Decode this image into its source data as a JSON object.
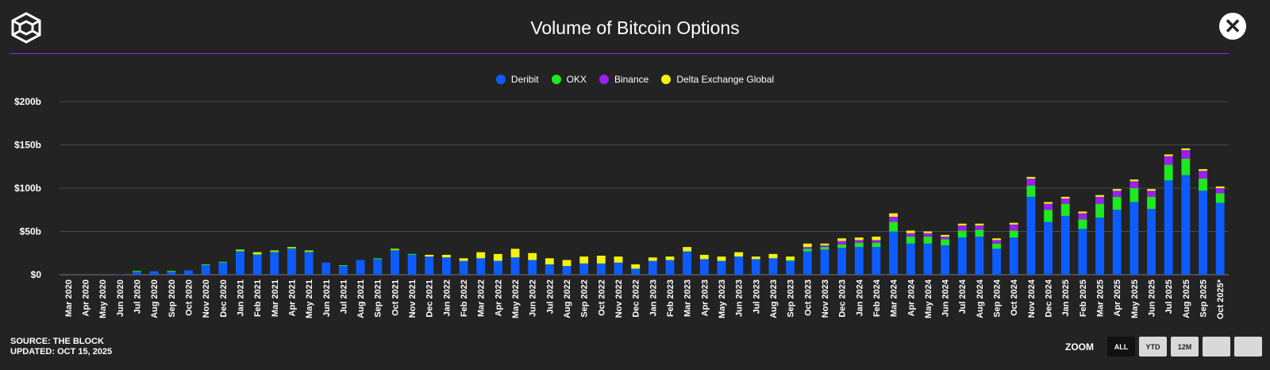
{
  "header": {
    "title": "Volume of Bitcoin Options",
    "close_label": "✕"
  },
  "footer": {
    "source": "SOURCE: THE BLOCK",
    "updated": "UPDATED: OCT 15, 2025"
  },
  "zoom": {
    "label": "ZOOM",
    "buttons": [
      "ALL",
      "YTD",
      "12M",
      "",
      ""
    ],
    "active": "ALL"
  },
  "colors": {
    "background": "#232323",
    "accent_rule": "#8a2be2"
  },
  "chart_data": {
    "type": "bar",
    "stacked": true,
    "title": "Volume of Bitcoin Options",
    "xlabel": "",
    "ylabel": "",
    "ylim": [
      0,
      200
    ],
    "y_ticks": [
      0,
      50,
      100,
      150,
      200
    ],
    "y_tick_labels": [
      "$0",
      "$50b",
      "$100b",
      "$150b",
      "$200b"
    ],
    "legend_position": "top-center",
    "grid": true,
    "categories": [
      "Mar 2020",
      "Apr 2020",
      "May 2020",
      "Jun 2020",
      "Jul 2020",
      "Aug 2020",
      "Sep 2020",
      "Oct 2020",
      "Nov 2020",
      "Dec 2020",
      "Jan 2021",
      "Feb 2021",
      "Mar 2021",
      "Apr 2021",
      "May 2021",
      "Jun 2021",
      "Jul 2021",
      "Aug 2021",
      "Sep 2021",
      "Oct 2021",
      "Nov 2021",
      "Dec 2021",
      "Jan 2022",
      "Feb 2022",
      "Mar 2022",
      "Apr 2022",
      "May 2022",
      "Jun 2022",
      "Jul 2022",
      "Aug 2022",
      "Sep 2022",
      "Oct 2022",
      "Nov 2022",
      "Dec 2022",
      "Jan 2023",
      "Feb 2023",
      "Mar 2023",
      "Apr 2023",
      "May 2023",
      "Jun 2023",
      "Jul 2023",
      "Aug 2023",
      "Sep 2023",
      "Oct 2023",
      "Nov 2023",
      "Dec 2023",
      "Jan 2024",
      "Feb 2024",
      "Mar 2024",
      "Apr 2024",
      "May 2024",
      "Jun 2024",
      "Jul 2024",
      "Aug 2024",
      "Sep 2024",
      "Oct 2024",
      "Nov 2024",
      "Dec 2024",
      "Jan 2025",
      "Feb 2025",
      "Mar 2025",
      "Apr 2025",
      "May 2025",
      "Jun 2025",
      "Jul 2025",
      "Aug 2025",
      "Sep 2025",
      "Oct 2025*"
    ],
    "series": [
      {
        "name": "Deribit",
        "color": "#0d5cff",
        "values": [
          0,
          0,
          0,
          0.5,
          3.5,
          4,
          3.5,
          5,
          11,
          14,
          27,
          23,
          26,
          30,
          26,
          14,
          10,
          17,
          18,
          28,
          23,
          21,
          20,
          16,
          19,
          16,
          20,
          17,
          12,
          10,
          13,
          13,
          14,
          7,
          16,
          17,
          27,
          18,
          16,
          21,
          18,
          19,
          16,
          27,
          29,
          31,
          32,
          32,
          50,
          36,
          36,
          34,
          43,
          44,
          30,
          43,
          90,
          61,
          68,
          53,
          66,
          75,
          84,
          76,
          109,
          115,
          97,
          83
        ]
      },
      {
        "name": "OKX",
        "color": "#1ee81e",
        "values": [
          0,
          0,
          0,
          0,
          1,
          0,
          1,
          0,
          1,
          1,
          1,
          1,
          1,
          1,
          1,
          0,
          1,
          0,
          1,
          1,
          1,
          0,
          0,
          0,
          0,
          0,
          0,
          0,
          0,
          0,
          0,
          0,
          0,
          0,
          0,
          0,
          0,
          0,
          0,
          0,
          0,
          0,
          1,
          3,
          3,
          4,
          5,
          5,
          11,
          8,
          8,
          7,
          8,
          8,
          6,
          8,
          13,
          14,
          14,
          11,
          16,
          15,
          16,
          14,
          18,
          19,
          14,
          11
        ]
      },
      {
        "name": "Binance",
        "color": "#9b1ff2",
        "values": [
          0,
          0,
          0,
          0,
          0,
          0,
          0,
          0,
          0,
          0,
          0,
          0,
          0,
          0,
          0,
          0,
          0,
          0,
          0,
          0,
          0,
          0,
          0,
          0,
          0,
          0,
          0,
          0,
          0,
          0,
          0,
          0,
          0,
          0,
          0,
          0,
          0,
          0,
          0,
          0,
          0,
          0,
          0,
          2,
          2,
          4,
          3,
          3,
          6,
          4,
          4,
          3,
          6,
          5,
          4,
          7,
          8,
          7,
          6,
          7,
          8,
          7,
          8,
          7,
          10,
          10,
          9,
          6
        ]
      },
      {
        "name": "Delta Exchange Global",
        "color": "#f2f20d",
        "values": [
          0,
          0,
          0,
          0,
          0,
          0,
          0,
          0,
          0,
          0,
          1,
          2,
          1,
          1,
          1,
          0,
          0,
          0,
          0,
          1,
          0,
          2,
          3,
          3,
          7,
          8,
          10,
          8,
          7,
          7,
          8,
          9,
          7,
          5,
          4,
          4,
          5,
          5,
          5,
          5,
          3,
          5,
          4,
          4,
          2,
          3,
          3,
          4,
          4,
          3,
          2,
          2,
          2,
          2,
          2,
          2,
          2,
          2,
          2,
          2,
          2,
          2,
          2,
          2,
          2,
          2,
          2,
          2
        ]
      }
    ]
  }
}
